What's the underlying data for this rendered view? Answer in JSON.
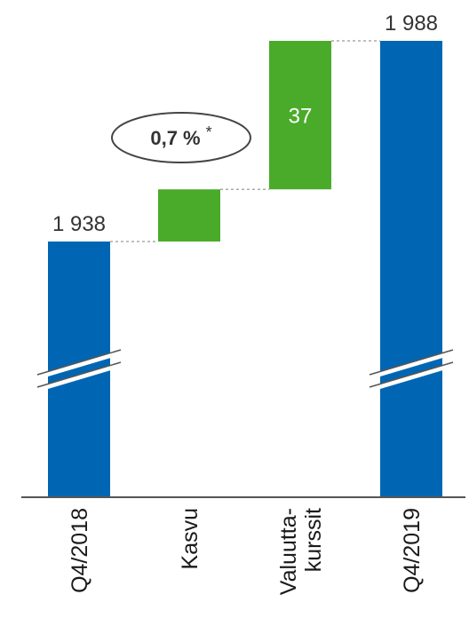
{
  "chart_data": {
    "type": "waterfall",
    "categories": [
      "Q4/2018",
      "Kasvu",
      "Valuutta-\nkurssit",
      "Q4/2019"
    ],
    "bars": [
      {
        "category": "Q4/2018",
        "kind": "total",
        "value": 1938,
        "label": "1 938",
        "color": "#0066b3"
      },
      {
        "category": "Kasvu",
        "kind": "increase",
        "value": 13,
        "label": "",
        "color": "#4aab2b"
      },
      {
        "category": "Valuutta-\nkurssit",
        "kind": "increase",
        "value": 37,
        "label": "37",
        "color": "#4aab2b"
      },
      {
        "category": "Q4/2019",
        "kind": "total",
        "value": 1988,
        "label": "1 988",
        "color": "#0066b3"
      }
    ],
    "axis_break": true,
    "callout": {
      "text": "0,7 %",
      "suffix": "*"
    },
    "connector_color": "#999999",
    "axis_color": "#555555"
  }
}
